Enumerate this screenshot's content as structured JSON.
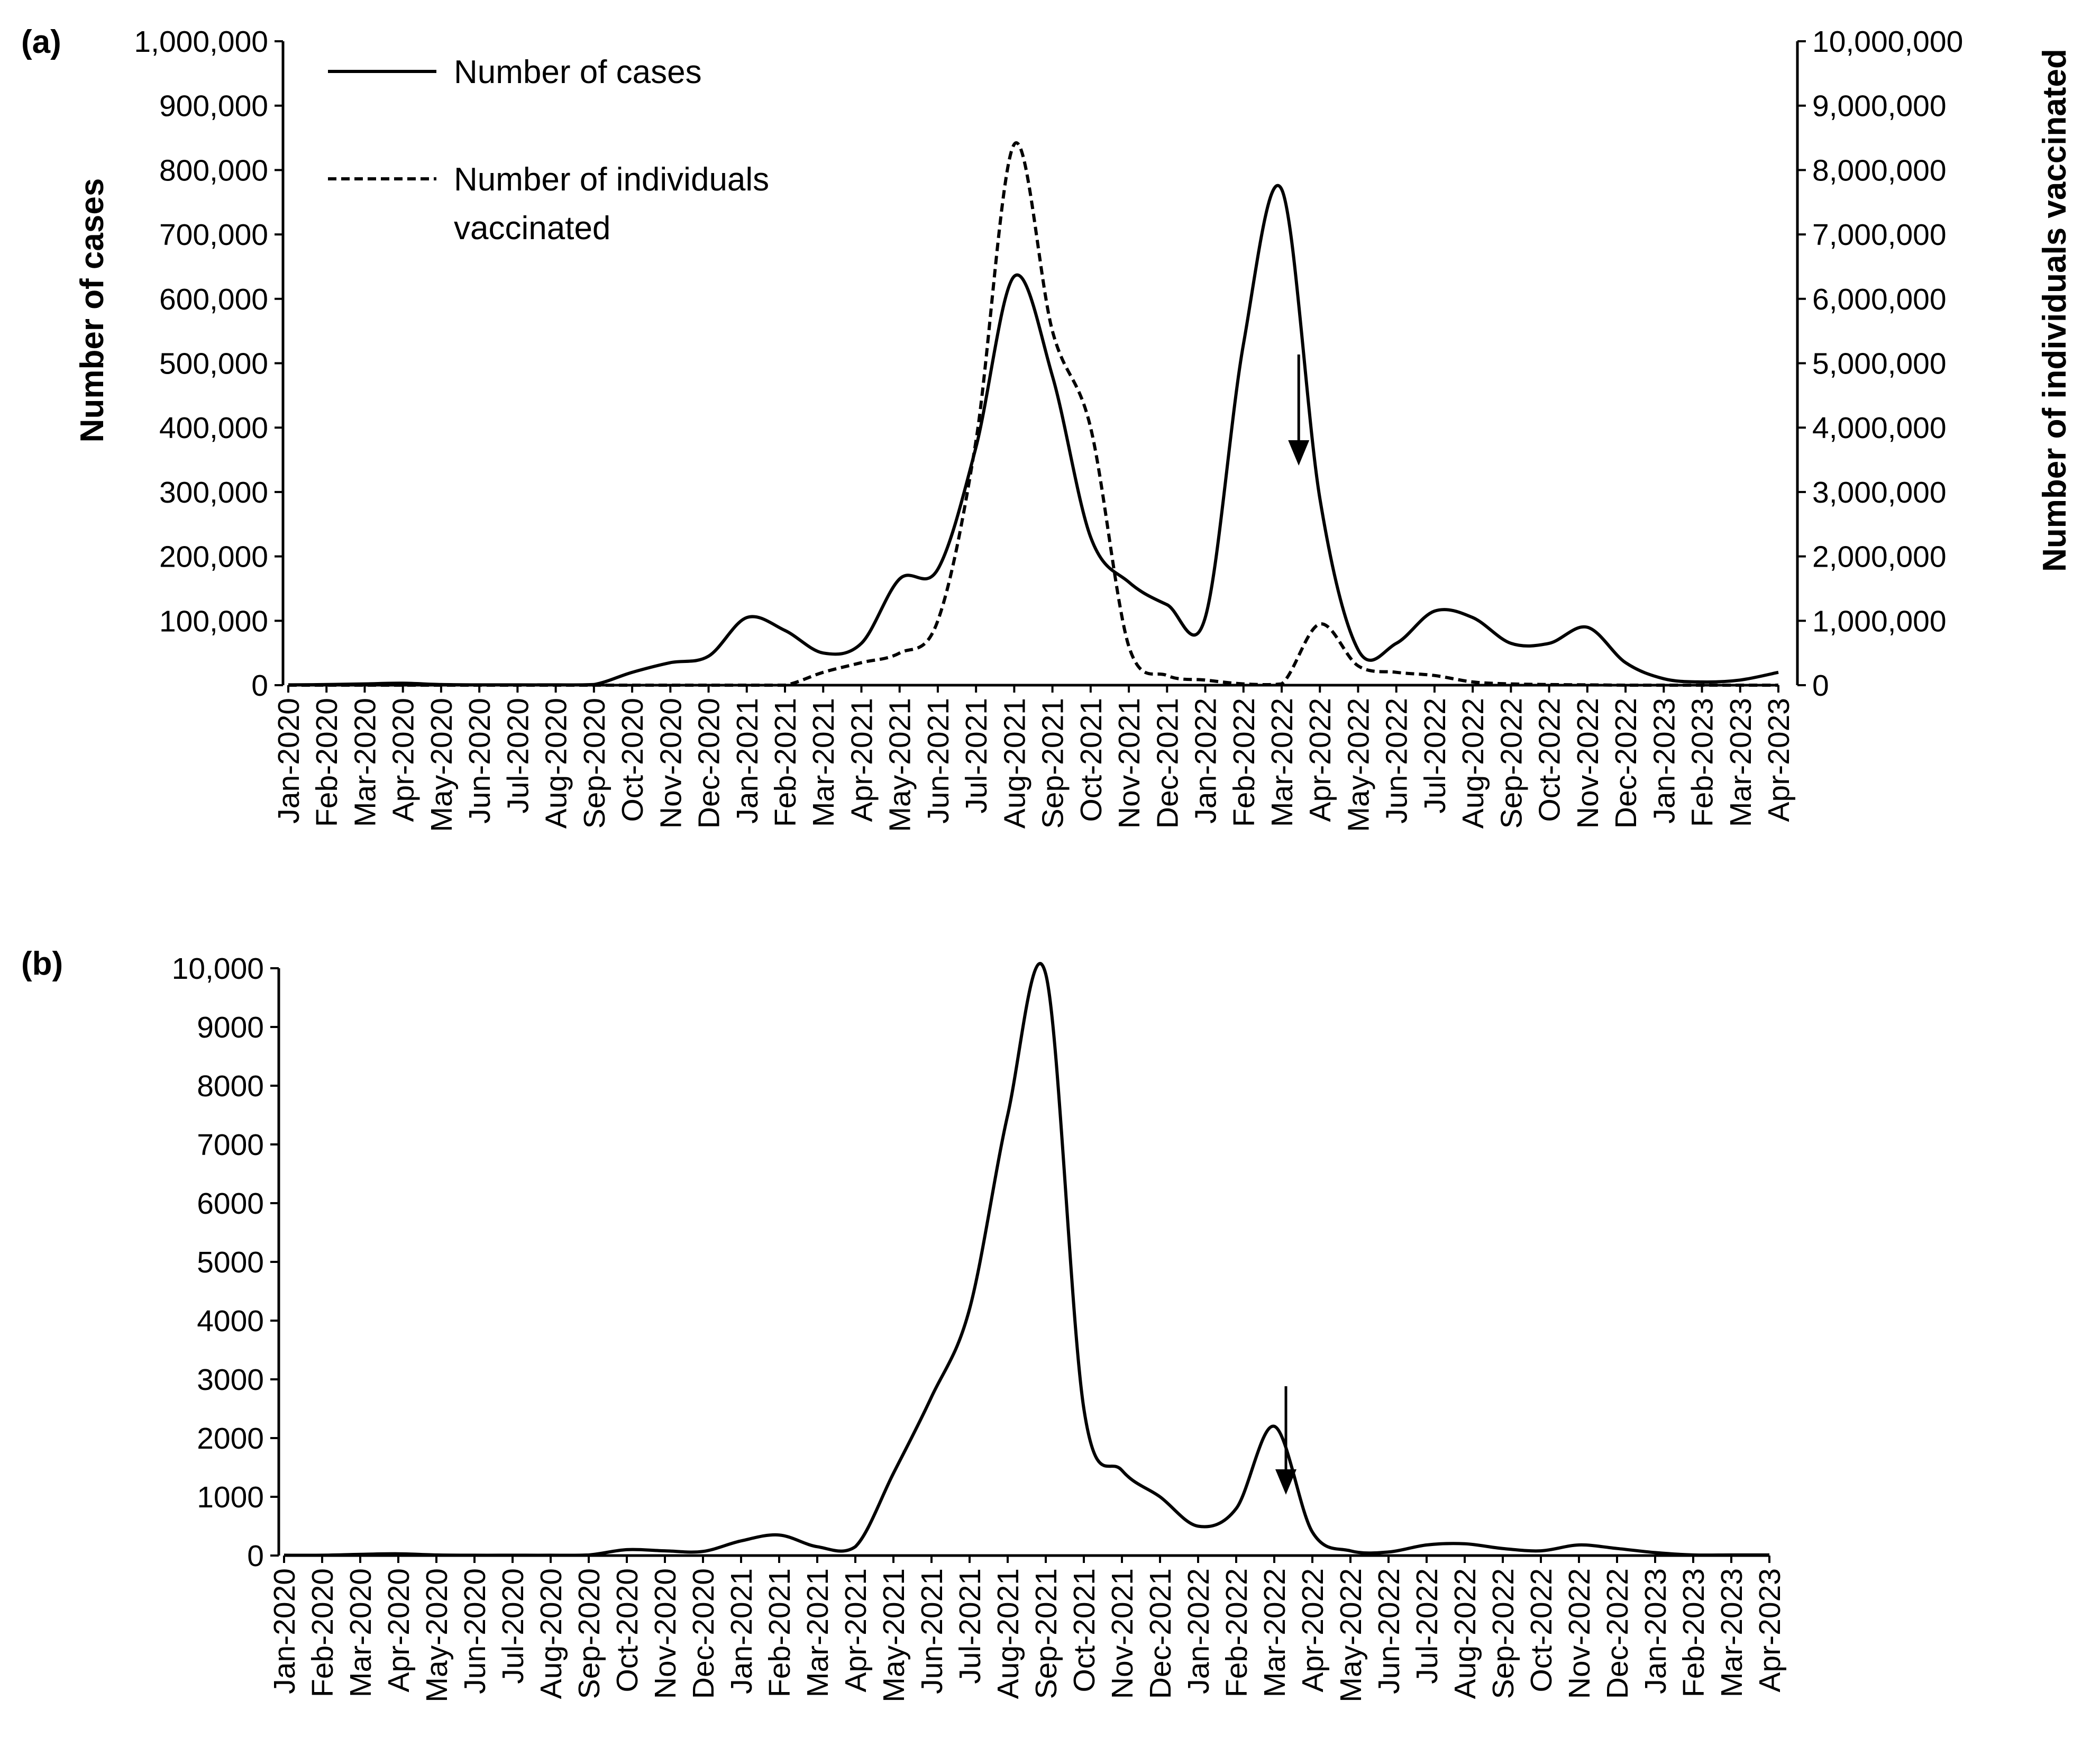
{
  "figure": {
    "colors": {
      "line": "#000000",
      "background": "#ffffff"
    }
  },
  "chart_data": [
    {
      "type": "line",
      "panel_label": "(a)",
      "categories": [
        "Jan-2020",
        "Feb-2020",
        "Mar-2020",
        "Apr-2020",
        "May-2020",
        "Jun-2020",
        "Jul-2020",
        "Aug-2020",
        "Sep-2020",
        "Oct-2020",
        "Nov-2020",
        "Dec-2020",
        "Jan-2021",
        "Feb-2021",
        "Mar-2021",
        "Apr-2021",
        "May-2021",
        "Jun-2021",
        "Jul-2021",
        "Aug-2021",
        "Sep-2021",
        "Oct-2021",
        "Nov-2021",
        "Dec-2021",
        "Jan-2022",
        "Feb-2022",
        "Mar-2022",
        "Apr-2022",
        "May-2022",
        "Jun-2022",
        "Jul-2022",
        "Aug-2022",
        "Sep-2022",
        "Oct-2022",
        "Nov-2022",
        "Dec-2022",
        "Jan-2023",
        "Feb-2023",
        "Mar-2023",
        "Apr-2023"
      ],
      "ylabel": "Number of cases",
      "y2label": "Number of individuals vaccinated",
      "ylim": [
        0,
        1000000
      ],
      "y2lim": [
        0,
        10000000
      ],
      "yticks": [
        "0",
        "100,000",
        "200,000",
        "300,000",
        "400,000",
        "500,000",
        "600,000",
        "700,000",
        "800,000",
        "900,000",
        "1,000,000"
      ],
      "y2ticks": [
        "0",
        "1,000,000",
        "2,000,000",
        "3,000,000",
        "4,000,000",
        "5,000,000",
        "6,000,000",
        "7,000,000",
        "8,000,000",
        "9,000,000",
        "10,000,000"
      ],
      "series": [
        {
          "name": "Number of cases",
          "axis": "left",
          "style": "solid",
          "values": [
            500,
            1000,
            2000,
            3000,
            1000,
            500,
            500,
            500,
            1000,
            20000,
            35000,
            45000,
            105000,
            85000,
            50000,
            65000,
            165000,
            180000,
            370000,
            635000,
            480000,
            230000,
            160000,
            125000,
            105000,
            530000,
            770000,
            290000,
            55000,
            65000,
            115000,
            105000,
            65000,
            65000,
            90000,
            35000,
            10000,
            5000,
            8000,
            20000
          ]
        },
        {
          "name": "Number of individuals vaccinated",
          "axis": "right",
          "style": "dashed",
          "values": [
            0,
            0,
            0,
            0,
            0,
            0,
            0,
            0,
            0,
            0,
            0,
            0,
            0,
            0,
            200000,
            350000,
            500000,
            1000000,
            3800000,
            8400000,
            5500000,
            4000000,
            600000,
            150000,
            80000,
            20000,
            20000,
            950000,
            300000,
            200000,
            150000,
            50000,
            20000,
            10000,
            5000,
            0,
            0,
            0,
            0,
            0
          ]
        }
      ],
      "legend": {
        "placement": "top-left",
        "cases_label": "Number of cases",
        "vacc_label_line1": "Number of individuals",
        "vacc_label_line2": "vaccinated"
      },
      "annotation": {
        "type": "arrow-down",
        "category": "Apr-2022"
      }
    },
    {
      "type": "line",
      "panel_label": "(b)",
      "categories": [
        "Jan-2020",
        "Feb-2020",
        "Mar-2020",
        "Apr-2020",
        "May-2020",
        "Jun-2020",
        "Jul-2020",
        "Aug-2020",
        "Sep-2020",
        "Oct-2020",
        "Nov-2020",
        "Dec-2020",
        "Jan-2021",
        "Feb-2021",
        "Mar-2021",
        "Apr-2021",
        "May-2021",
        "Jun-2021",
        "Jul-2021",
        "Aug-2021",
        "Sep-2021",
        "Oct-2021",
        "Nov-2021",
        "Dec-2021",
        "Jan-2022",
        "Feb-2022",
        "Mar-2022",
        "Apr-2022",
        "May-2022",
        "Jun-2022",
        "Jul-2022",
        "Aug-2022",
        "Sep-2022",
        "Oct-2022",
        "Nov-2022",
        "Dec-2022",
        "Jan-2023",
        "Feb-2023",
        "Mar-2023",
        "Apr-2023"
      ],
      "ylim": [
        0,
        10000
      ],
      "yticks": [
        "0",
        "1000",
        "2000",
        "3000",
        "4000",
        "5000",
        "6000",
        "7000",
        "8000",
        "9000",
        "10,000"
      ],
      "series": [
        {
          "name": "",
          "style": "solid",
          "values": [
            5,
            5,
            20,
            30,
            10,
            5,
            5,
            5,
            10,
            100,
            80,
            70,
            250,
            350,
            150,
            150,
            1400,
            2700,
            4200,
            7500,
            9900,
            2500,
            1450,
            1000,
            500,
            800,
            2200,
            400,
            80,
            60,
            180,
            200,
            120,
            80,
            180,
            120,
            50,
            10,
            10,
            10
          ]
        }
      ],
      "annotation": {
        "type": "arrow-down",
        "category": "Apr-2022"
      }
    }
  ]
}
